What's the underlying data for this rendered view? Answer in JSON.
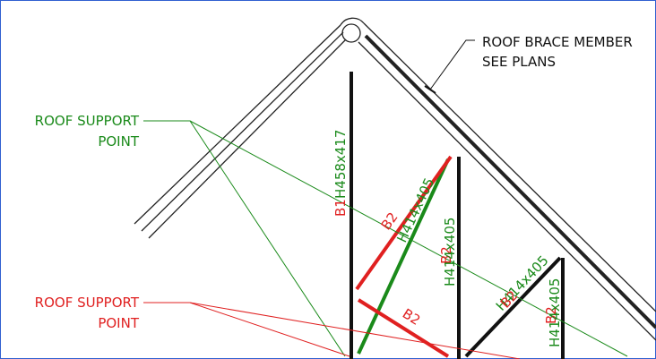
{
  "notes": {
    "brace": [
      "ROOF BRACE MEMBER",
      "SEE PLANS"
    ],
    "support_top": [
      "ROOF SUPPORT",
      "POINT"
    ],
    "support_bottom": [
      "ROOF SUPPORT",
      "POINT"
    ]
  },
  "labels": {
    "b1": "B1",
    "h1": "H458x417",
    "b2a": "B2",
    "h2": "H414x405",
    "b2b": "B2",
    "h3": "H414x405",
    "b2c": "B2",
    "h4": "H414x405",
    "b2d": "B2",
    "b2e": "B2",
    "h5": "H414x405"
  }
}
